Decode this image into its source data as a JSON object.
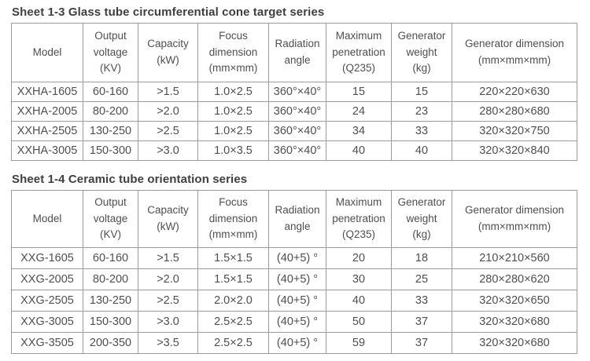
{
  "colors": {
    "background": "#ffffff",
    "border": "#9c9c9c",
    "text": "#4f4f4f",
    "title_text": "#3f3f3f"
  },
  "tables": [
    {
      "title": "Sheet 1-3 Glass tube circumferential cone target series",
      "headers": [
        "Model",
        "Output\nvoltage\n(KV)",
        "Capacity\n(kW)",
        "Focus\ndimension\n(mm×mm)",
        "Radiation\nangle",
        "Maximum\npenetration\n(Q235)",
        "Generator\nweight\n(kg)",
        "Generator dimension\n(mm×mm×mm)"
      ],
      "rows": [
        [
          "XXHA-1605",
          "60-160",
          ">1.5",
          "1.0×2.5",
          "360°×40°",
          "15",
          "15",
          "220×220×630"
        ],
        [
          "XXHA-2005",
          "80-200",
          ">2.0",
          "1.0×2.5",
          "360°×40°",
          "24",
          "23",
          "280×280×680"
        ],
        [
          "XXHA-2505",
          "130-250",
          ">2.5",
          "1.0×2.5",
          "360°×40°",
          "34",
          "33",
          "320×320×750"
        ],
        [
          "XXHA-3005",
          "150-300",
          ">3.0",
          "1.0×3.5",
          "360°×40°",
          "40",
          "40",
          "320×320×840"
        ]
      ]
    },
    {
      "title": "Sheet 1-4 Ceramic tube orientation series",
      "headers": [
        "Model",
        "Output\nvoltage\n(KV)",
        "Capacity\n(kW)",
        "Focus\ndimension\n(mm×mm)",
        "Radiation\nangle",
        "Maximum\npenetration\n(Q235)",
        "Generator\nweight\n(kg)",
        "Generator dimension\n(mm×mm×mm)"
      ],
      "rows": [
        [
          "XXG-1605",
          "60-160",
          ">1.5",
          "1.5×1.5",
          "(40+5) °",
          "20",
          "18",
          "210×210×560"
        ],
        [
          "XXG-2005",
          "80-200",
          ">2.0",
          "1.5×1.5",
          "(40+5) °",
          "30",
          "25",
          "280×280×620"
        ],
        [
          "XXG-2505",
          "130-250",
          ">2.5",
          "2.0×2.0",
          "(40+5) °",
          "40",
          "33",
          "320×320×650"
        ],
        [
          "XXG-3005",
          "150-300",
          ">3.0",
          "2.5×2.5",
          "(40+5) °",
          "50",
          "37",
          "320×320×680"
        ],
        [
          "XXG-3505",
          "200-350",
          ">3.5",
          "2.5×2.5",
          "(40+5) °",
          "59",
          "37",
          "320×320×680"
        ]
      ]
    }
  ]
}
